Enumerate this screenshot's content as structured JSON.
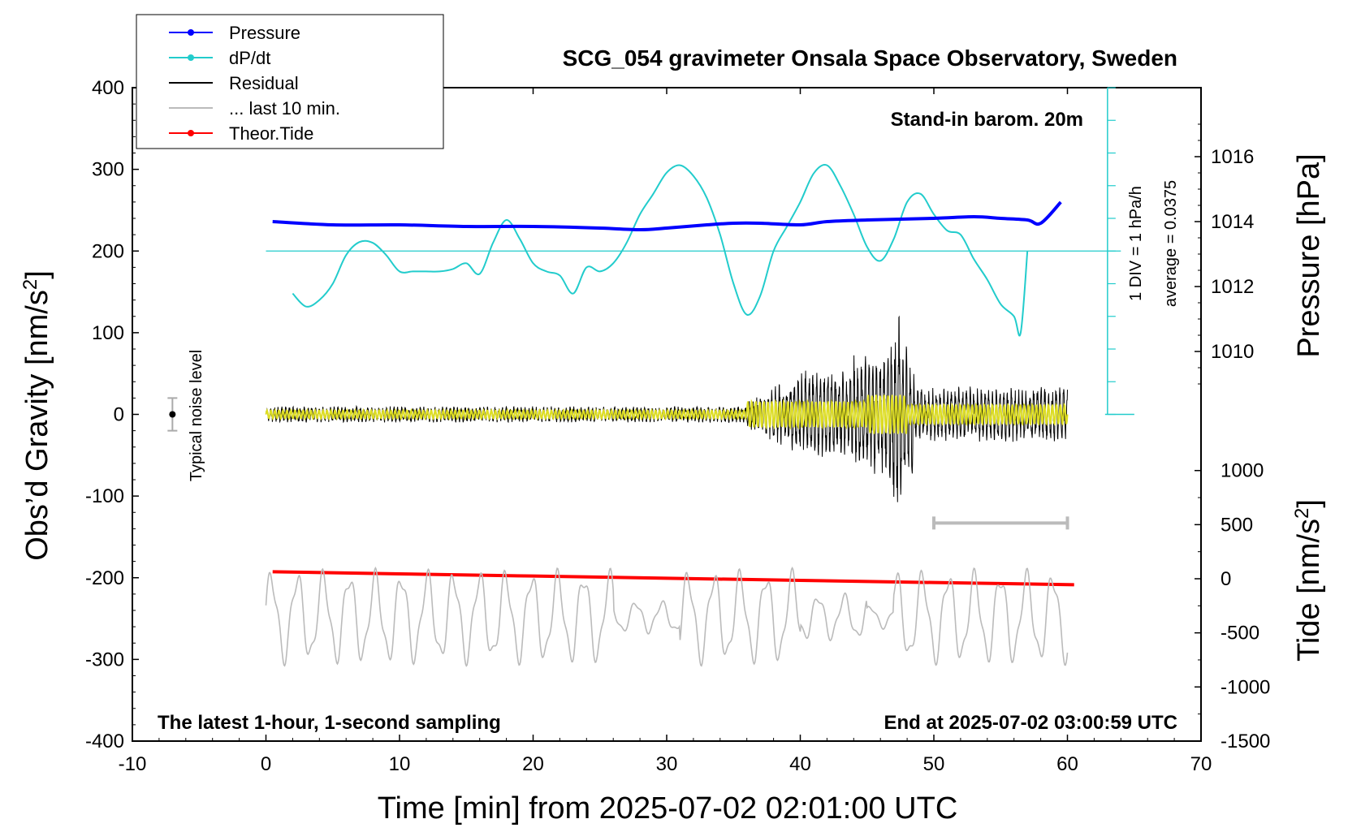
{
  "chart_data": {
    "type": "line",
    "title": "SCG_054 gravimeter Onsala Space Observatory, Sweden",
    "xlabel": "Time [min] from 2025-07-02 02:01:00 UTC",
    "ylabel_left": "Obs’d Gravity [nm/s",
    "ylabel_left_sup": "2",
    "ylabel_left_tail": "]",
    "ylabel_right_pressure": "Pressure [hPa]",
    "ylabel_right_tide": "Tide [nm/s",
    "ylabel_right_tide_sup": "2",
    "ylabel_right_tide_tail": "]",
    "xlim": [
      -10,
      70
    ],
    "ylim_gravity": [
      -400,
      400
    ],
    "ylim_pressure_visible": [
      1009,
      1017
    ],
    "ylim_tide": [
      -1500,
      1500
    ],
    "x_ticks": [
      "-10",
      "0",
      "10",
      "20",
      "30",
      "40",
      "50",
      "60",
      "70"
    ],
    "y_ticks_gravity": [
      "400",
      "300",
      "200",
      "100",
      "0",
      "-100",
      "-200",
      "-300",
      "-400"
    ],
    "y_ticks_pressure": [
      "1016",
      "1014",
      "1012",
      "1010"
    ],
    "y_ticks_tide": [
      "1000",
      "500",
      "0",
      "-500",
      "-1000",
      "-1500"
    ],
    "annotations": {
      "barometer": "Stand-in barom. 20m",
      "latest": "The latest 1-hour, 1-second sampling",
      "end": "End at 2025-07-02 03:00:59 UTC",
      "noise": "Typical noise level",
      "div_scale": "1 DIV = 1 hPa/h",
      "average": "average = 0.0375"
    },
    "legend": [
      {
        "name": "Pressure",
        "color": "#0000ff",
        "marker": true
      },
      {
        "name": "dP/dt",
        "color": "#22cccc",
        "marker": true
      },
      {
        "name": "Residual",
        "color": "#000000",
        "marker": false
      },
      {
        "name": "... last 10 min.",
        "color": "#bbbbbb",
        "marker": false
      },
      {
        "name": "Theor.Tide",
        "color": "#ff0000",
        "marker": true
      }
    ],
    "series": [
      {
        "name": "Pressure",
        "axis": "pressure_hPa",
        "color": "#0000ff",
        "x": [
          0.5,
          5,
          10,
          15,
          20,
          25,
          28,
          30,
          33,
          35,
          37,
          40,
          42,
          45,
          50,
          53,
          55,
          57,
          58,
          59.5
        ],
        "y": [
          1014,
          1013.9,
          1013.9,
          1013.85,
          1013.85,
          1013.8,
          1013.75,
          1013.8,
          1013.9,
          1013.95,
          1013.95,
          1013.9,
          1014,
          1014.05,
          1014.1,
          1014.15,
          1014.1,
          1014.05,
          1013.95,
          1014.6
        ]
      },
      {
        "name": "dP/dt",
        "axis": "gravity_scale",
        "color": "#22cccc",
        "x": [
          2,
          3,
          4,
          5,
          6,
          7,
          8,
          9,
          10,
          11,
          12,
          13,
          14,
          15,
          16,
          17,
          18,
          19,
          20,
          21,
          22,
          23,
          24,
          25,
          26,
          27,
          28,
          29,
          30,
          31,
          32,
          33,
          34,
          35,
          36,
          37,
          38,
          39,
          40,
          41,
          42,
          43,
          44,
          45,
          46,
          47,
          48,
          49,
          50,
          51,
          52,
          53,
          54,
          55,
          56,
          56.5,
          57
        ],
        "y": [
          148,
          132,
          140,
          160,
          195,
          211,
          210,
          195,
          175,
          175,
          175,
          175,
          178,
          185,
          172,
          210,
          238,
          215,
          185,
          175,
          170,
          148,
          180,
          175,
          185,
          210,
          245,
          270,
          296,
          305,
          292,
          265,
          220,
          160,
          122,
          145,
          200,
          230,
          260,
          295,
          305,
          280,
          245,
          205,
          188,
          215,
          260,
          270,
          245,
          225,
          220,
          190,
          165,
          135,
          120,
          100,
          200
        ]
      },
      {
        "name": "Residual",
        "axis": "gravity",
        "color": "#000000",
        "x_range": [
          0,
          60
        ],
        "y_range": [
          -150,
          150
        ]
      },
      {
        "name": "Theor.Tide",
        "axis": "tide",
        "color": "#ff0000",
        "x": [
          0.5,
          10,
          20,
          30,
          40,
          50,
          60.5
        ],
        "y": [
          65,
          45,
          25,
          5,
          -15,
          -35,
          -55
        ]
      },
      {
        "name": "... last 10 min.",
        "axis": "gravity",
        "color": "#bbbbbb",
        "x_range": [
          0,
          60
        ],
        "y_range": [
          -310,
          -190
        ]
      }
    ],
    "reference_lines": {
      "dPdt_zero_gravity": 200,
      "noise_bar": {
        "x": -7,
        "y": 0,
        "half_range": 20
      },
      "last10_bar": {
        "x_range": [
          50,
          60
        ],
        "y": -133
      }
    },
    "grid": false
  }
}
